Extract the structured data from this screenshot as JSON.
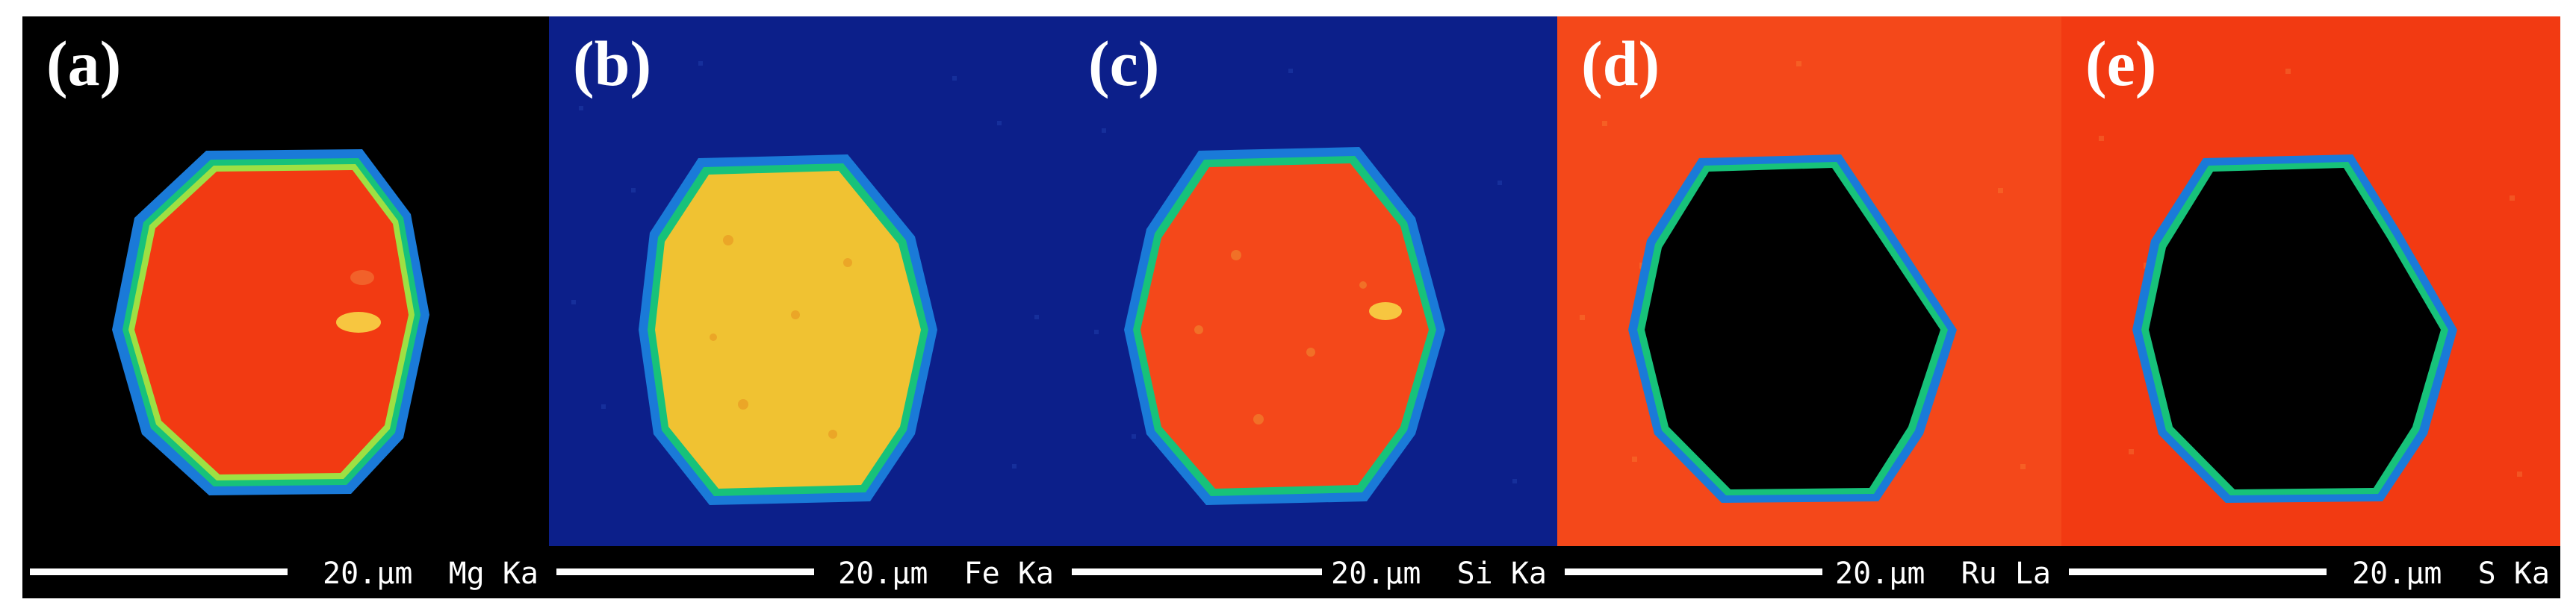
{
  "figure": {
    "panels": [
      {
        "label": "(a)",
        "scale_text": "20.µm",
        "signal_text": "Mg Ka",
        "background_level": "none",
        "particle_level": "high"
      },
      {
        "label": "(b)",
        "scale_text": "20.µm",
        "signal_text": "Fe Ka",
        "background_level": "low",
        "particle_level": "medium"
      },
      {
        "label": "(c)",
        "scale_text": "20.µm",
        "signal_text": "Si Ka",
        "background_level": "low",
        "particle_level": "high"
      },
      {
        "label": "(d)",
        "scale_text": "20.µm",
        "signal_text": "Ru La",
        "background_level": "high",
        "particle_level": "none"
      },
      {
        "label": "(e)",
        "scale_text": "20.µm",
        "signal_text": "S Ka",
        "background_level": "high",
        "particle_level": "none"
      }
    ],
    "colors": {
      "none": "#000000",
      "low": "#0c1f8a",
      "medium": "#f0c232",
      "high": "#f23a12",
      "high_alt": "#f4481a",
      "rim_outer": "#1a7ad8",
      "rim_mid": "#17c27a",
      "rim_inner": "#9ee043"
    }
  }
}
